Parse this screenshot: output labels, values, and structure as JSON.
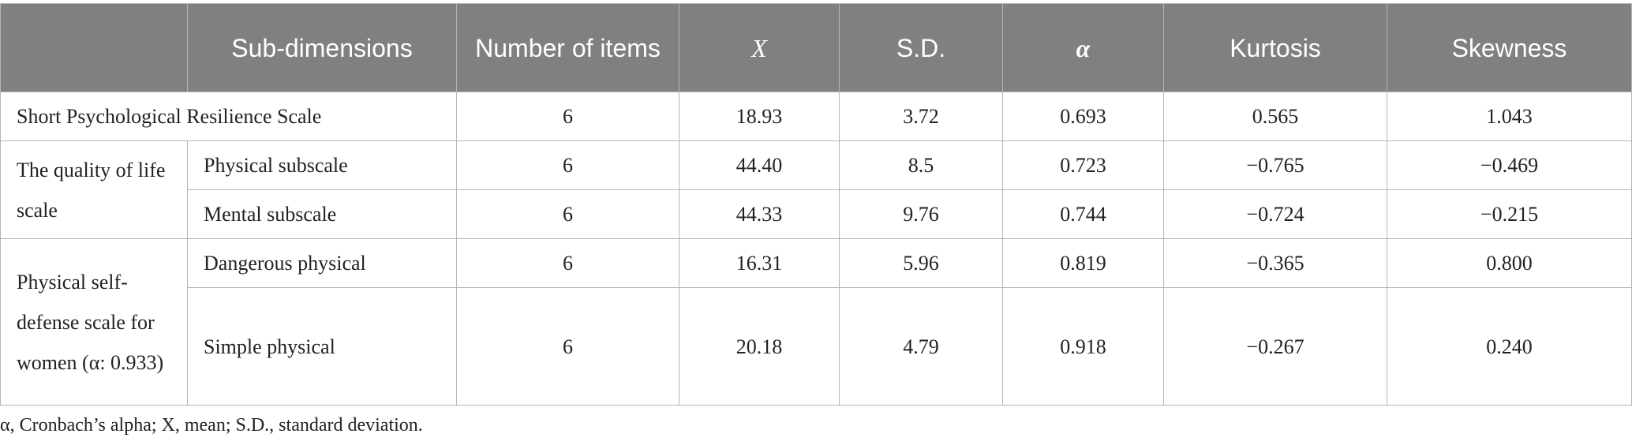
{
  "table": {
    "header": [
      "",
      "Sub-dimensions",
      "Number of items",
      "X",
      "S.D.",
      "α",
      "Kurtosis",
      "Skewness"
    ],
    "rows": [
      {
        "scale": "Short Psychological Resilience Scale",
        "values": [
          "6",
          "18.93",
          "3.72",
          "0.693",
          "0.565",
          "1.043"
        ]
      },
      {
        "scale": "The quality of life scale",
        "sub": "Physical subscale",
        "values": [
          "6",
          "44.40",
          "8.5",
          "0.723",
          "−0.765",
          "−0.469"
        ]
      },
      {
        "sub": "Mental subscale",
        "values": [
          "6",
          "44.33",
          "9.76",
          "0.744",
          "−0.724",
          "−0.215"
        ]
      },
      {
        "scale": "Physical self-defense scale for women (α: 0.933)",
        "sub": "Dangerous physical",
        "values": [
          "6",
          "16.31",
          "5.96",
          "0.819",
          "−0.365",
          "0.800"
        ]
      },
      {
        "sub": "Simple physical",
        "values": [
          "6",
          "20.18",
          "4.79",
          "0.918",
          "−0.267",
          "0.240"
        ]
      }
    ]
  },
  "footnote": "α, Cronbach’s alpha; X, mean; S.D., standard deviation."
}
